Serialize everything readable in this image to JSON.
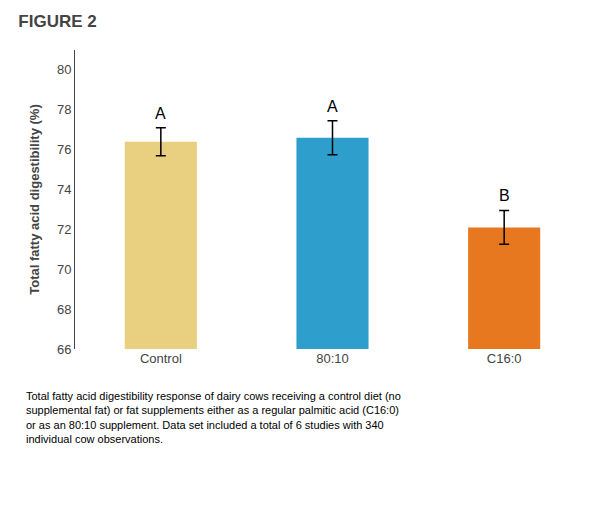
{
  "chart_data": {
    "type": "bar",
    "title": "FIGURE 2",
    "caption": "Total fatty acid digestibility response of dairy cows receiving a control diet (no\nsupplemental fat) or fat supplements either as a regular palmitic acid (C16:0)\nor as an 80:10 supplement. Data set included a total of 6 studies with 340\nindividual cow observations.",
    "ylabel": "Total fatty acid digestibility (%)",
    "categories": [
      "Control",
      "80:10",
      "C16:0"
    ],
    "values": [
      76.4,
      76.6,
      72.1
    ],
    "errors": [
      0.7,
      0.85,
      0.85
    ],
    "colors": [
      "#E8D080",
      "#2E9FCC",
      "#E87820"
    ],
    "annotations": [
      {
        "category": "Control",
        "text": "A"
      },
      {
        "category": "80:10",
        "text": "A"
      },
      {
        "category": "C16:0",
        "text": "B"
      }
    ],
    "ylim": [
      66,
      81
    ],
    "yticks": [
      66,
      68,
      70,
      72,
      74,
      76,
      78,
      80
    ],
    "grid": false
  }
}
